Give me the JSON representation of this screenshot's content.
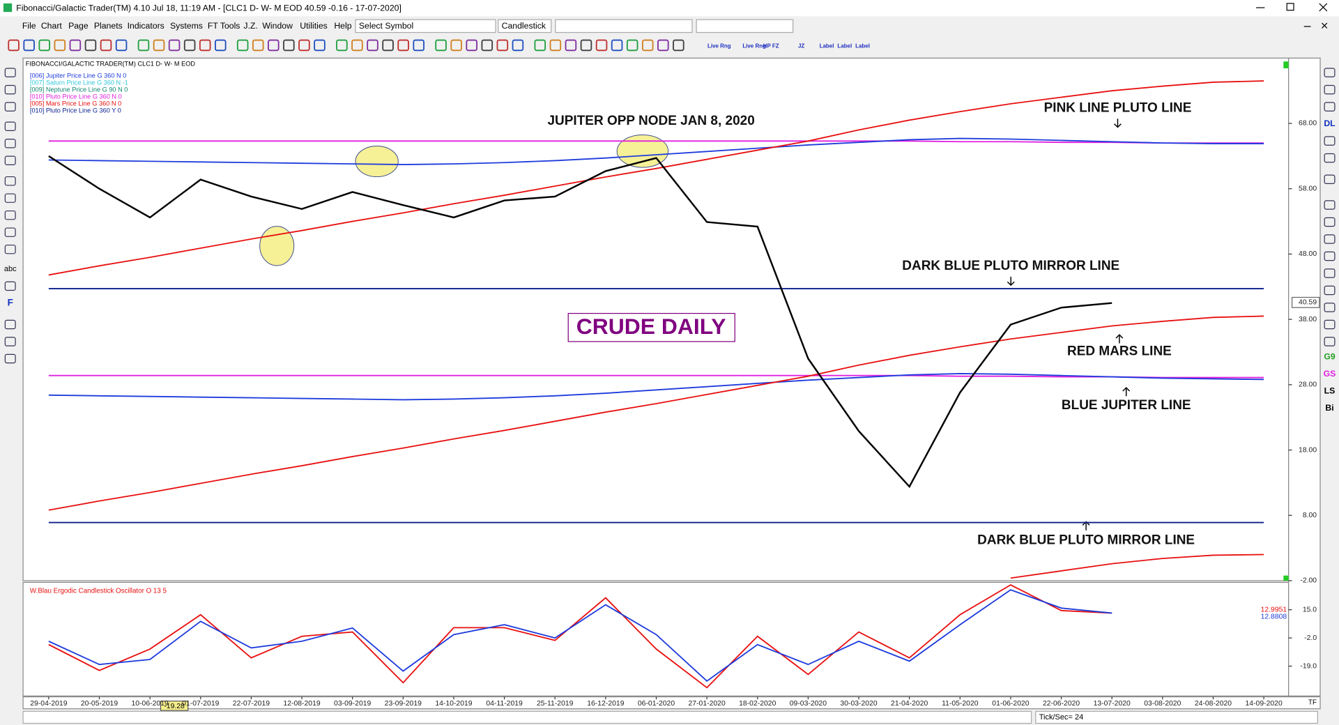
{
  "window": {
    "title": "Fibonacci/Galactic Trader(TM) 4.10 Jul 18, 11:19 AM - [CLC1 D- W- M EOD 40.59 -0.16 - 17-07-2020]",
    "menu": [
      "File",
      "Chart",
      "Page",
      "Planets",
      "Indicators",
      "Systems",
      "FT Tools",
      "J.Z.",
      "Window",
      "Utilities",
      "Help"
    ],
    "symbol_box": "Select Symbol",
    "chart_style_box": "Candlestick",
    "toolbar_labels": [
      "Live Rng",
      "Live Rng",
      "HP FZ",
      "JZ",
      "Label",
      "Label",
      "Label"
    ],
    "left_tools": [
      "abc",
      "F"
    ],
    "right_tools": [
      "DL",
      "G9",
      "GS",
      "LS",
      "Bi"
    ],
    "status": "Tick/Sec= 24",
    "corner": "TF"
  },
  "chart_data": [
    {
      "type": "line",
      "header": "FIBONACCI/GALACTIC TRADER(TM)   CLC1 D- W- M EOD",
      "legend": [
        {
          "name": "[006] Jupiter Price Line G 360 N 0",
          "color": "#1e3cdc"
        },
        {
          "name": "[007] Saturn Price Line G 360 N -1",
          "color": "#30c8d8"
        },
        {
          "name": "[009] Neptune Price Line G 90 N 0",
          "color": "#108870"
        },
        {
          "name": "[010] Pluto Price Line G 360 N 0",
          "color": "#e020e0"
        },
        {
          "name": "[005] Mars Price Line G 360 N 0",
          "color": "#e81010"
        },
        {
          "name": "[010] Pluto Price Line G 360 Y 0",
          "color": "#0a1e8c"
        }
      ],
      "annotations": [
        "JUPITER OPP NODE JAN 8, 2020",
        "PINK LINE PLUTO LINE",
        "DARK BLUE PLUTO MIRROR LINE",
        "CRUDE DAILY",
        "RED MARS LINE",
        "BLUE JUPITER LINE",
        "DARK BLUE PLUTO MIRROR LINE"
      ],
      "categories": [
        "29-04-2019",
        "20-05-2019",
        "10-06-2019",
        "01-07-2019",
        "22-07-2019",
        "12-08-2019",
        "03-09-2019",
        "23-09-2019",
        "14-10-2019",
        "04-11-2019",
        "25-11-2019",
        "16-12-2019",
        "06-01-2020",
        "27-01-2020",
        "18-02-2020",
        "09-03-2020",
        "30-03-2020",
        "21-04-2020",
        "11-05-2020",
        "01-06-2020",
        "22-06-2020",
        "13-07-2020",
        "03-08-2020",
        "24-08-2020",
        "14-09-2020"
      ],
      "ylim": [
        -2,
        78
      ],
      "yticks": [
        {
          "value": 68,
          "label": "68.00"
        },
        {
          "value": 58,
          "label": "58.00"
        },
        {
          "value": 48,
          "label": "48.00"
        },
        {
          "value": 38,
          "label": "38.00"
        },
        {
          "value": 28,
          "label": "28.00"
        },
        {
          "value": 18,
          "label": "18.00"
        },
        {
          "value": 8,
          "label": "8.00"
        },
        {
          "value": -2,
          "label": "-2.00"
        }
      ],
      "last_price": 40.59,
      "series": [
        {
          "color": "#e020e0",
          "values": [
            65.3,
            65.3,
            65.3,
            65.3,
            65.3,
            65.3,
            65.3,
            65.3,
            65.3,
            65.3,
            65.3,
            65.3,
            65.3,
            65.3,
            65.3,
            65.3,
            65.3,
            65.3,
            65.2,
            65.2,
            65.1,
            65.1,
            65.0,
            65.0,
            65.0
          ]
        },
        {
          "color": "#e020e0",
          "values": [
            29.4,
            29.4,
            29.4,
            29.4,
            29.4,
            29.4,
            29.4,
            29.4,
            29.4,
            29.4,
            29.4,
            29.4,
            29.4,
            29.4,
            29.4,
            29.4,
            29.4,
            29.4,
            29.3,
            29.3,
            29.2,
            29.2,
            29.1,
            29.1,
            29.1
          ]
        },
        {
          "color": "#1e3cdc",
          "values": [
            62.4,
            62.3,
            62.2,
            62.1,
            62.0,
            61.9,
            61.8,
            61.7,
            61.8,
            62.0,
            62.3,
            62.7,
            63.2,
            63.7,
            64.2,
            64.7,
            65.1,
            65.5,
            65.7,
            65.6,
            65.4,
            65.2,
            65.0,
            64.9,
            64.9
          ]
        },
        {
          "color": "#1e3cdc",
          "values": [
            26.4,
            26.3,
            26.2,
            26.1,
            26.0,
            25.9,
            25.8,
            25.7,
            25.8,
            26.0,
            26.3,
            26.7,
            27.2,
            27.7,
            28.2,
            28.7,
            29.1,
            29.5,
            29.7,
            29.6,
            29.4,
            29.2,
            29.0,
            28.9,
            28.8
          ]
        },
        {
          "color": "#0a1e8c",
          "values": [
            42.7,
            42.7,
            42.7,
            42.7,
            42.7,
            42.7,
            42.7,
            42.7,
            42.7,
            42.7,
            42.7,
            42.7,
            42.7,
            42.7,
            42.7,
            42.7,
            42.7,
            42.7,
            42.7,
            42.7,
            42.7,
            42.7,
            42.7,
            42.7,
            42.7
          ]
        },
        {
          "color": "#0a1e8c",
          "values": [
            6.9,
            6.9,
            6.9,
            6.9,
            6.9,
            6.9,
            6.9,
            6.9,
            6.9,
            6.9,
            6.9,
            6.9,
            6.9,
            6.9,
            6.9,
            6.9,
            6.9,
            6.9,
            6.9,
            6.9,
            6.9,
            6.9,
            6.9,
            6.9,
            6.9
          ]
        },
        {
          "color": "#e81010",
          "values": [
            44.8,
            46.2,
            47.5,
            48.9,
            50.3,
            51.6,
            53.0,
            54.3,
            55.7,
            57.0,
            58.4,
            59.8,
            61.1,
            62.5,
            63.9,
            65.3,
            67.0,
            68.5,
            69.8,
            71.0,
            72.0,
            73.0,
            73.7,
            74.3,
            74.5
          ]
        },
        {
          "color": "#e81010",
          "values": [
            8.8,
            10.2,
            11.5,
            12.9,
            14.3,
            15.6,
            17.0,
            18.3,
            19.7,
            21.0,
            22.4,
            23.8,
            25.1,
            26.5,
            27.9,
            29.3,
            31.0,
            32.5,
            33.8,
            35.0,
            36.0,
            37.0,
            37.7,
            38.3,
            38.5
          ]
        },
        {
          "color": "#e81010",
          "values": [
            null,
            null,
            null,
            null,
            null,
            null,
            null,
            null,
            null,
            null,
            null,
            null,
            null,
            null,
            null,
            null,
            null,
            null,
            null,
            -1.6,
            -0.5,
            0.6,
            1.4,
            1.9,
            2.0
          ]
        },
        {
          "color": "#000000",
          "values": [
            63,
            58,
            53.6,
            59.4,
            56.8,
            54.9,
            57.5,
            55.5,
            53.6,
            56.2,
            56.8,
            60.7,
            62.7,
            52.9,
            52.2,
            32,
            20.9,
            12.4,
            26.8,
            37.2,
            39.8,
            40.5,
            null,
            null,
            null
          ]
        }
      ]
    },
    {
      "type": "line",
      "title": "W.Blau Ergodic Candlestick Oscillator O 13 5",
      "ylim": [
        -37,
        31.5
      ],
      "yticks": [
        {
          "value": 15,
          "label": "15.0"
        },
        {
          "value": -2,
          "label": "-2.0"
        },
        {
          "value": -19,
          "label": "-19.0"
        }
      ],
      "readouts": [
        12.9951,
        12.8808
      ],
      "cursor_readout": "-19.28",
      "series": [
        {
          "color": "#e81010",
          "values": [
            -6,
            -21.6,
            -8.7,
            12,
            -14,
            -1,
            1.6,
            -29,
            4.2,
            4.2,
            -3.5,
            22.2,
            -8.7,
            -32,
            -1,
            -24,
            1.6,
            -14,
            12,
            30,
            14.5,
            13,
            null,
            null,
            null
          ]
        },
        {
          "color": "#1e3cdc",
          "values": [
            -4,
            -18,
            -15,
            8,
            -8,
            -4,
            4,
            -22,
            0,
            6,
            -2,
            18,
            0,
            -28,
            -6,
            -18,
            -4,
            -16,
            6,
            27,
            16,
            13,
            null,
            null,
            null
          ]
        }
      ]
    }
  ]
}
